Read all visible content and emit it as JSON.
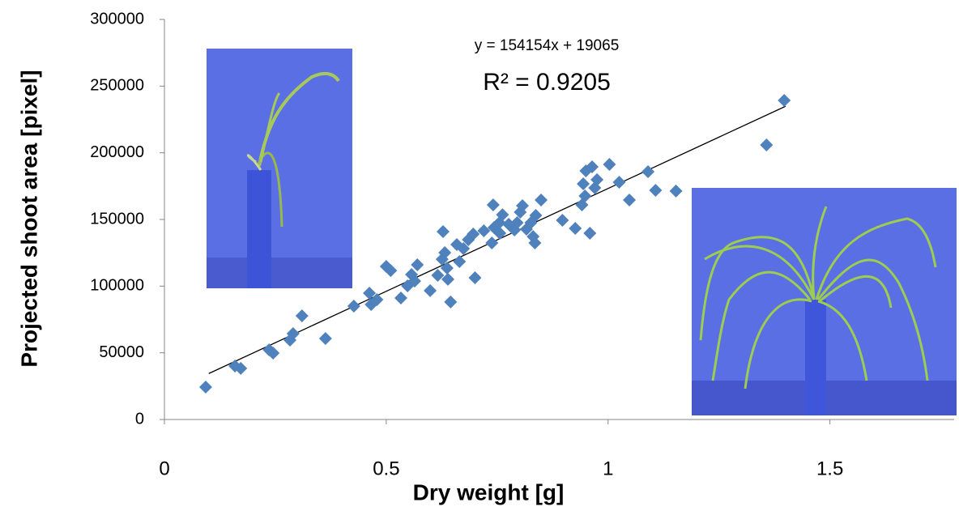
{
  "chart_data": {
    "type": "scatter",
    "annotations": [
      "y = 154154x + 19065",
      "R² = 0.9205"
    ],
    "x_label": "Dry weight [g]",
    "y_label": "Projected shoot area [pixel]",
    "color": "#4f81bd",
    "xlim": [
      0,
      1.78
    ],
    "xticks": [
      0,
      0.5,
      1,
      1.5
    ],
    "ylim": [
      0,
      300000
    ],
    "yticks": [
      0,
      50000,
      100000,
      150000,
      200000,
      250000,
      300000
    ],
    "x": [
      0.093,
      0.159,
      0.172,
      0.236,
      0.245,
      0.31,
      0.283,
      0.29,
      0.363,
      0.427,
      0.462,
      0.466,
      0.479,
      0.5,
      0.51,
      0.533,
      0.548,
      0.557,
      0.57,
      0.564,
      0.599,
      0.616,
      0.628,
      0.626,
      0.632,
      0.639,
      0.645,
      0.637,
      0.659,
      0.665,
      0.674,
      0.685,
      0.696,
      0.7,
      0.72,
      0.738,
      0.741,
      0.743,
      0.755,
      0.756,
      0.762,
      0.776,
      0.789,
      0.795,
      0.802,
      0.807,
      0.816,
      0.826,
      0.831,
      0.835,
      0.837,
      0.849,
      0.897,
      0.926,
      0.941,
      0.944,
      0.948,
      0.95,
      0.959,
      0.964,
      0.97,
      0.975,
      1.003,
      1.025,
      1.048,
      1.09,
      1.107,
      1.153,
      1.357,
      1.397
    ],
    "values": [
      24300,
      40100,
      38300,
      52200,
      49800,
      77700,
      59500,
      64400,
      60700,
      85000,
      94700,
      86200,
      89900,
      114800,
      111700,
      91100,
      100200,
      108700,
      116000,
      103800,
      96600,
      108100,
      140900,
      120200,
      125100,
      105100,
      88100,
      113600,
      131200,
      118400,
      128100,
      134800,
      139100,
      106300,
      141500,
      132400,
      160900,
      143900,
      147600,
      139700,
      153600,
      146400,
      142100,
      147600,
      155500,
      160300,
      142700,
      147600,
      137200,
      132400,
      153000,
      164600,
      149400,
      143300,
      160900,
      176700,
      167600,
      186400,
      139700,
      189500,
      173700,
      179800,
      191300,
      177900,
      164600,
      185800,
      171900,
      171300,
      205900,
      239300
    ],
    "trendline": {
      "x": [
        0.1,
        1.4
      ],
      "y": [
        34480,
        234881
      ],
      "color": "#000000"
    }
  }
}
